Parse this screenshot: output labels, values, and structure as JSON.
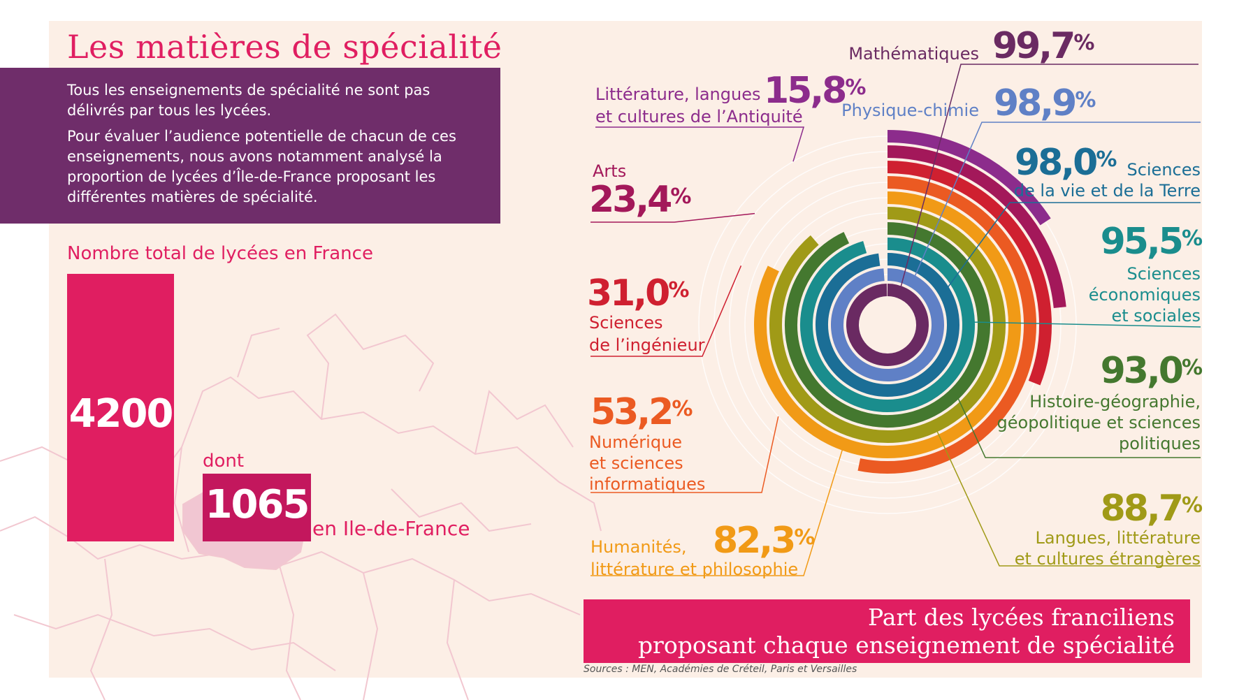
{
  "title": "Les matières de spécialité",
  "intro": {
    "p1": "Tous les enseignements de spécialité ne sont pas délivrés par tous les lycées.",
    "p2": "Pour évaluer l’audience potentielle de chacun de ces enseignements, nous avons notamment analysé la proportion de lycées d’Île-de-France proposant les différentes matières de spécialité."
  },
  "totals": {
    "label": "Nombre total de lycées en France",
    "france_value": "4200",
    "connector": "dont",
    "idf_value": "1065",
    "idf_label": "en Ile-de-France"
  },
  "chart_data": {
    "type": "radial_bar",
    "title": "Part des lycées franciliens proposant chaque enseignement de spécialité",
    "unit": "%",
    "max": 100,
    "series": [
      {
        "label": "Mathématiques",
        "value": 99.7,
        "display": "99,7",
        "color": "#6a2a62"
      },
      {
        "label": "Physique-chimie",
        "value": 98.9,
        "display": "98,9",
        "color": "#5f80c6"
      },
      {
        "label": "Sciences de la vie et de la Terre",
        "value": 98.0,
        "display": "98,0",
        "color": "#1b6e96"
      },
      {
        "label": "Sciences économiques et sociales",
        "value": 95.5,
        "display": "95,5",
        "color": "#1a8d8d"
      },
      {
        "label": "Histoire-géographie, géopolitique et sciences politiques",
        "value": 93.0,
        "display": "93,0",
        "color": "#44782f"
      },
      {
        "label": "Langues, littérature et cultures étrangères",
        "value": 88.7,
        "display": "88,7",
        "color": "#a09a17"
      },
      {
        "label": "Humanités, littérature et philosophie",
        "value": 82.3,
        "display": "82,3",
        "color": "#f19a16"
      },
      {
        "label": "Numérique et sciences informatiques",
        "value": 53.2,
        "display": "53,2",
        "color": "#eb5a22"
      },
      {
        "label": "Sciences de l’ingénieur",
        "value": 31.0,
        "display": "31,0",
        "color": "#cf2030"
      },
      {
        "label": "Arts",
        "value": 23.4,
        "display": "23,4",
        "color": "#a3185a"
      },
      {
        "label": "Littérature, langues et cultures de l’Antiquité",
        "value": 15.8,
        "display": "15,8",
        "color": "#8c2c8c"
      }
    ]
  },
  "labels": {
    "maths": "Mathématiques",
    "pc": "Physique-chimie",
    "svt": [
      "Sciences",
      "de la vie et de la Terre"
    ],
    "ses": [
      "Sciences",
      "économiques",
      "et sociales"
    ],
    "hg": [
      "Histoire-géographie,",
      "géopolitique et sciences",
      "politiques"
    ],
    "llce": [
      "Langues, littérature",
      "et cultures étrangères"
    ],
    "hlp": [
      "Humanités,",
      "littérature et philosophie"
    ],
    "nsi": [
      "Numérique",
      "et sciences",
      "informatiques"
    ],
    "si": [
      "Sciences",
      "de l’ingénieur"
    ],
    "arts": "Arts",
    "lca": [
      "Littérature, langues",
      "et cultures de l’Antiquité"
    ],
    "percent_sign": "%"
  },
  "footer": {
    "line1": "Part des lycées franciliens",
    "line2": "proposant chaque enseignement de spécialité",
    "sources": "Sources : MEN, Académies de Créteil, Paris et Versailles"
  }
}
